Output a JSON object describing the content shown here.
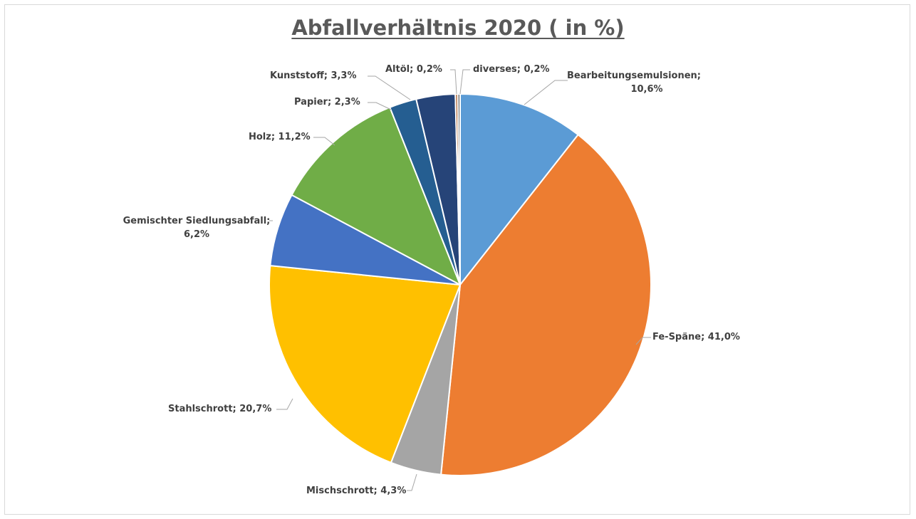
{
  "chart_data": {
    "type": "pie",
    "title": "Abfallverhältnis 2020 ( in %)",
    "start_angle_deg": 0,
    "direction": "clockwise",
    "slices": [
      {
        "name": "Bearbeitungsemulsionen",
        "value": 10.6,
        "label_lines": [
          "Bearbeitungsemulsionen;",
          "10,6%"
        ],
        "color": "#5B9BD5"
      },
      {
        "name": "Fe-Späne",
        "value": 41.0,
        "label_lines": [
          "Fe-Späne; 41,0%"
        ],
        "color": "#ED7D31"
      },
      {
        "name": "Mischschrott",
        "value": 4.3,
        "label_lines": [
          "Mischschrott; 4,3%"
        ],
        "color": "#A5A5A5"
      },
      {
        "name": "Stahlschrott",
        "value": 20.7,
        "label_lines": [
          "Stahlschrott; 20,7%"
        ],
        "color": "#FFC000"
      },
      {
        "name": "Gemischter Siedlungsabfall",
        "value": 6.2,
        "label_lines": [
          "Gemischter Siedlungsabfall;",
          "6,2%"
        ],
        "color": "#4472C4"
      },
      {
        "name": "Holz",
        "value": 11.2,
        "label_lines": [
          "Holz; 11,2%"
        ],
        "color": "#70AD47"
      },
      {
        "name": "Papier",
        "value": 2.3,
        "label_lines": [
          "Papier; 2,3%"
        ],
        "color": "#255E91"
      },
      {
        "name": "Kunststoff",
        "value": 3.3,
        "label_lines": [
          "Kunststoff; 3,3%"
        ],
        "color": "#264478"
      },
      {
        "name": "Altöl",
        "value": 0.2,
        "label_lines": [
          "Altöl; 0,2%"
        ],
        "color": "#9E480E"
      },
      {
        "name": "diverses",
        "value": 0.2,
        "label_lines": [
          "diverses; 0,2%"
        ],
        "color": "#636363"
      }
    ]
  }
}
